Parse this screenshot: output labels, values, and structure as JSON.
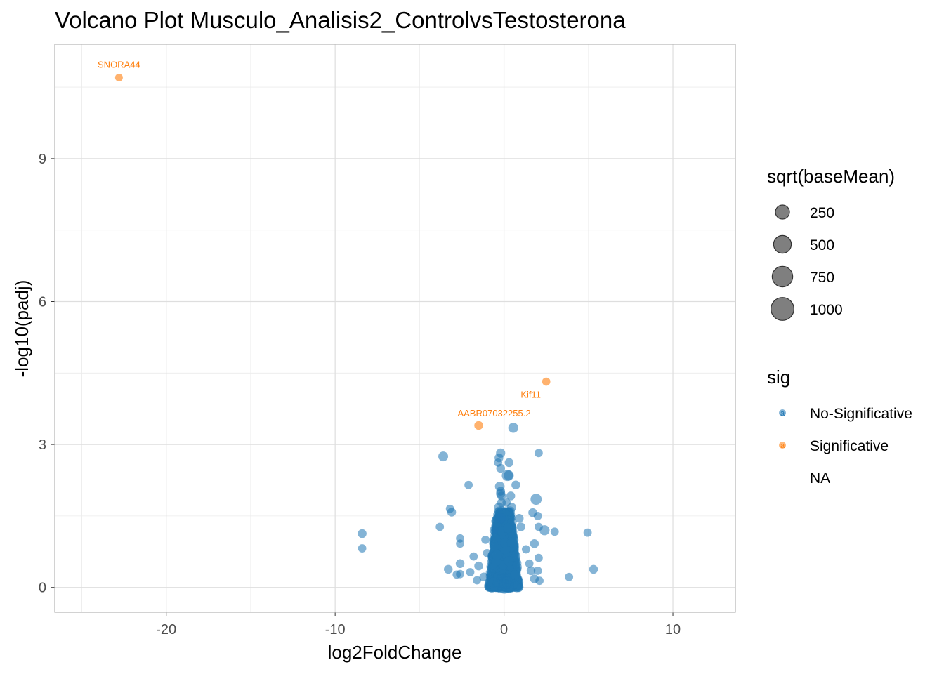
{
  "chart_data": {
    "type": "scatter",
    "title": "Volcano Plot Musculo_Analisis2_ControlvsTestosterona",
    "xlabel": "log2FoldChange",
    "ylabel": "-log10(padj)",
    "xlim": [
      -26.6,
      13.7
    ],
    "ylim": [
      -0.52,
      11.4
    ],
    "x_ticks": [
      -20,
      -10,
      0,
      10
    ],
    "y_ticks": [
      0,
      3,
      6,
      9
    ],
    "grid": true,
    "legend_position": "right",
    "colors": {
      "No-Significative": "#1f77b4",
      "Significative": "#ff7f0e"
    },
    "size_legend": {
      "title": "sqrt(baseMean)",
      "labels": [
        "250",
        "500",
        "750",
        "1000"
      ],
      "values": [
        250,
        500,
        750,
        1000
      ]
    },
    "color_legend": {
      "title": "sig",
      "labels": [
        "No-Significative",
        "Significative",
        "NA"
      ],
      "glyph": "a"
    },
    "labeled_points": [
      {
        "label": "SNORA44",
        "x": -22.8,
        "y": 10.7,
        "sig": "Significative",
        "size": 200
      },
      {
        "label": "Kif11",
        "x": 2.5,
        "y": 4.32,
        "sig": "Significative",
        "size": 240
      },
      {
        "label": "AABR07032255.2",
        "x": -1.5,
        "y": 3.4,
        "sig": "Significative",
        "size": 300
      }
    ],
    "series": [
      {
        "name": "No-Significative",
        "points": [
          [
            0.55,
            3.35,
            450
          ],
          [
            -3.6,
            2.75,
            420
          ],
          [
            -0.2,
            2.82,
            350
          ],
          [
            2.05,
            2.82,
            250
          ],
          [
            -0.3,
            2.72,
            300
          ],
          [
            -0.35,
            2.62,
            250
          ],
          [
            0.3,
            2.62,
            300
          ],
          [
            -0.2,
            2.5,
            300
          ],
          [
            0.2,
            2.35,
            600
          ],
          [
            0.28,
            2.35,
            450
          ],
          [
            -2.1,
            2.15,
            250
          ],
          [
            0.7,
            2.15,
            300
          ],
          [
            -0.25,
            2.12,
            400
          ],
          [
            -0.2,
            2.02,
            300
          ],
          [
            -0.2,
            1.97,
            350
          ],
          [
            -0.15,
            1.92,
            300
          ],
          [
            0.4,
            1.92,
            300
          ],
          [
            1.9,
            1.85,
            600
          ],
          [
            -0.15,
            1.78,
            300
          ],
          [
            0.15,
            1.78,
            250
          ],
          [
            -3.2,
            1.65,
            250
          ],
          [
            -0.3,
            1.68,
            400
          ],
          [
            0.45,
            1.68,
            350
          ],
          [
            -3.1,
            1.58,
            300
          ],
          [
            1.7,
            1.57,
            300
          ],
          [
            2.0,
            1.5,
            250
          ],
          [
            -0.2,
            1.45,
            500
          ],
          [
            -3.8,
            1.27,
            250
          ],
          [
            2.05,
            1.27,
            250
          ],
          [
            1.0,
            1.27,
            300
          ],
          [
            -8.4,
            1.13,
            300
          ],
          [
            2.4,
            1.2,
            450
          ],
          [
            3.0,
            1.17,
            250
          ],
          [
            4.95,
            1.15,
            250
          ],
          [
            -8.4,
            0.82,
            250
          ],
          [
            -2.6,
            1.03,
            250
          ],
          [
            -2.6,
            0.92,
            250
          ],
          [
            1.8,
            0.92,
            300
          ],
          [
            -3.3,
            0.38,
            300
          ],
          [
            -2.6,
            0.5,
            300
          ],
          [
            -2.6,
            0.28,
            250
          ],
          [
            -2.8,
            0.27,
            250
          ],
          [
            -1.8,
            0.65,
            250
          ],
          [
            -1.5,
            0.45,
            300
          ],
          [
            -1.2,
            0.22,
            300
          ],
          [
            -1.6,
            0.15,
            250
          ],
          [
            1.6,
            0.35,
            300
          ],
          [
            2.0,
            0.35,
            250
          ],
          [
            2.05,
            0.62,
            250
          ],
          [
            1.8,
            0.18,
            300
          ],
          [
            2.1,
            0.14,
            250
          ],
          [
            3.85,
            0.22,
            250
          ],
          [
            5.3,
            0.38,
            300
          ],
          [
            -2.0,
            0.32,
            250
          ],
          [
            1.3,
            0.8,
            250
          ],
          [
            -1.1,
            1.0,
            250
          ],
          [
            1.5,
            0.5,
            250
          ],
          [
            -1.0,
            0.72,
            250
          ],
          [
            0.9,
            1.45,
            300
          ],
          [
            -0.6,
            1.2,
            300
          ]
        ]
      }
    ],
    "core_cluster": {
      "x_center": 0,
      "x_spread": 0.9,
      "y_min": 0,
      "y_max": 1.6,
      "count": 1400
    }
  }
}
